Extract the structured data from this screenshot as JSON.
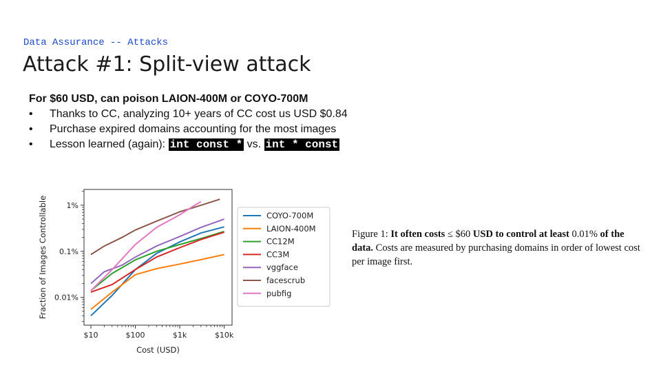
{
  "header": {
    "kicker": "Data Assurance -- Attacks",
    "title": "Attack #1: Split-view attack"
  },
  "content": {
    "headline": "For $60 USD, can poison LAION-400M or COYO-700M",
    "bullets": [
      {
        "text": "Thanks to CC, analyzing 10+ years of CC cost us USD $0.84"
      },
      {
        "text": "Purchase expired domains accounting for the most images"
      },
      {
        "text": "Lesson learned (again): ",
        "code1": "int const *",
        "mid": " vs. ",
        "code2": "int * const"
      }
    ]
  },
  "caption": {
    "prefix": "Figure 1: ",
    "bold1": "It often costs",
    "leq": " ≤ ",
    "amount": "$60",
    "bold2": " USD to control at least",
    "pct": " 0.01%",
    "bold3": "of the data.",
    "rest": " Costs are measured by purchasing domains in order of lowest cost per image first."
  },
  "chart_data": {
    "type": "line",
    "xlabel": "Cost (USD)",
    "ylabel": "Fraction of Images Controllable",
    "xscale": "log",
    "yscale": "log",
    "xlim": [
      7,
      15000
    ],
    "ylim": [
      0.0025,
      2.2
    ],
    "xticks": [
      10,
      100,
      1000,
      10000
    ],
    "xtick_labels": [
      "$10",
      "$100",
      "$1k",
      "$10k"
    ],
    "yticks": [
      0.01,
      0.1,
      1
    ],
    "ytick_labels": [
      "0.01%",
      "0.1%",
      "1%"
    ],
    "grid": false,
    "legend": "right",
    "series": [
      {
        "name": "COYO-700M",
        "color": "#1f77b4",
        "points": [
          [
            10,
            0.004
          ],
          [
            30,
            0.011
          ],
          [
            100,
            0.04
          ],
          [
            300,
            0.09
          ],
          [
            1000,
            0.16
          ],
          [
            3000,
            0.25
          ],
          [
            10000,
            0.34
          ]
        ]
      },
      {
        "name": "LAION-400M",
        "color": "#ff7f0e",
        "points": [
          [
            10,
            0.0055
          ],
          [
            30,
            0.013
          ],
          [
            100,
            0.031
          ],
          [
            300,
            0.042
          ],
          [
            1000,
            0.053
          ],
          [
            3000,
            0.066
          ],
          [
            10000,
            0.085
          ]
        ]
      },
      {
        "name": "CC12M",
        "color": "#2ca02c",
        "points": [
          [
            10,
            0.014
          ],
          [
            30,
            0.033
          ],
          [
            100,
            0.065
          ],
          [
            300,
            0.1
          ],
          [
            1000,
            0.14
          ],
          [
            3000,
            0.19
          ],
          [
            10000,
            0.27
          ]
        ]
      },
      {
        "name": "CC3M",
        "color": "#d62728",
        "points": [
          [
            10,
            0.013
          ],
          [
            30,
            0.019
          ],
          [
            100,
            0.04
          ],
          [
            300,
            0.075
          ],
          [
            1000,
            0.12
          ],
          [
            3000,
            0.18
          ],
          [
            10000,
            0.26
          ]
        ]
      },
      {
        "name": "vggface",
        "color": "#9467bd",
        "points": [
          [
            10,
            0.02
          ],
          [
            20,
            0.036
          ],
          [
            50,
            0.05
          ],
          [
            100,
            0.075
          ],
          [
            300,
            0.13
          ],
          [
            1000,
            0.21
          ],
          [
            3000,
            0.33
          ],
          [
            10000,
            0.5
          ]
        ]
      },
      {
        "name": "facescrub",
        "color": "#8c564b",
        "points": [
          [
            10,
            0.085
          ],
          [
            20,
            0.13
          ],
          [
            50,
            0.2
          ],
          [
            100,
            0.29
          ],
          [
            300,
            0.45
          ],
          [
            1000,
            0.72
          ],
          [
            3000,
            1.0
          ],
          [
            8000,
            1.35
          ]
        ]
      },
      {
        "name": "pubfig",
        "color": "#e377c2",
        "points": [
          [
            10,
            0.014
          ],
          [
            30,
            0.04
          ],
          [
            100,
            0.14
          ],
          [
            300,
            0.33
          ],
          [
            1000,
            0.62
          ],
          [
            2000,
            0.95
          ],
          [
            3000,
            1.2
          ]
        ]
      }
    ]
  }
}
